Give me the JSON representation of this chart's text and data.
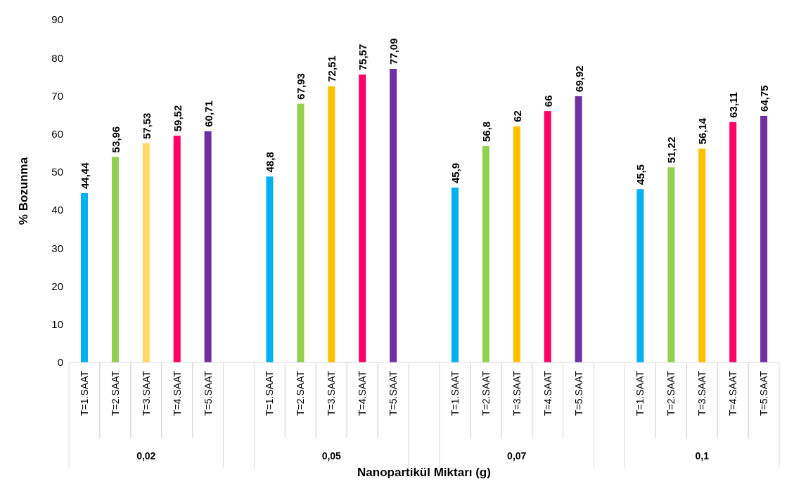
{
  "chart_data": {
    "type": "bar",
    "xlabel": "Nanopartikül Miktarı (g)",
    "ylabel": "% Bozunma",
    "categories": [
      "T=1.SAAT",
      "T=2.SAAT",
      "T=3.SAAT",
      "T=4.SAAT",
      "T=5.SAAT",
      null,
      "T=1.SAAT",
      "T=2.SAAT",
      "T=3.SAAT",
      "T=4.SAAT",
      "T=5.SAAT",
      null,
      "T=1.SAAT",
      "T=2.SAAT",
      "T=3.SAAT",
      "T=4.SAAT",
      "T=5.SAAT",
      null,
      "T=1.SAAT",
      "T=2.SAAT",
      "T=3.SAAT",
      "T=4.SAAT",
      "T=5.SAAT"
    ],
    "values": [
      44.44,
      53.96,
      57.53,
      59.52,
      60.71,
      null,
      48.8,
      67.93,
      72.51,
      75.57,
      77.09,
      null,
      45.9,
      56.8,
      62,
      66,
      69.92,
      null,
      45.5,
      51.22,
      56.14,
      63.11,
      64.75
    ],
    "value_labels": [
      "44,44",
      "53,96",
      "57,53",
      "59,52",
      "60,71",
      null,
      "48,8",
      "67,93",
      "72,51",
      "75,57",
      "77,09",
      null,
      "45,9",
      "56,8",
      "62",
      "66",
      "69,92",
      null,
      "45,5",
      "51,22",
      "56,14",
      "63,11",
      "64,75"
    ],
    "colors": [
      "#00b0f0",
      "#92d050",
      "#ffd966",
      "#ff0066",
      "#7030a0",
      null,
      "#00b0f0",
      "#92d050",
      "#ffc000",
      "#ff0066",
      "#7030a0",
      null,
      "#00b0f0",
      "#92d050",
      "#ffc000",
      "#ff0066",
      "#7030a0",
      null,
      "#00b0f0",
      "#92d050",
      "#ffc000",
      "#ff0066",
      "#7030a0"
    ],
    "annotations": [
      "0,02",
      "0,05",
      "0,07",
      "0,1"
    ],
    "ylim": [
      0,
      90
    ],
    "yticks": [
      0,
      10,
      20,
      30,
      40,
      50,
      60,
      70,
      80,
      90
    ]
  }
}
